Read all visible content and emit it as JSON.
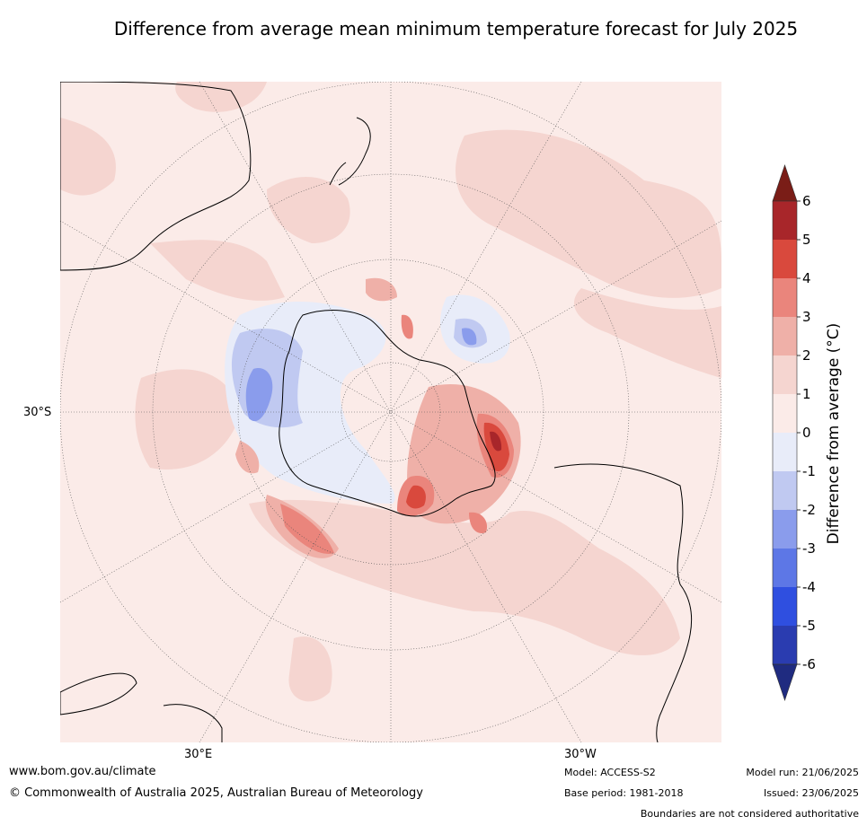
{
  "title": "Difference from average mean minimum temperature forecast for July 2025",
  "map": {
    "projection": "south polar stereographic",
    "graticule_labels": {
      "left": "30°S",
      "bottom_left": "30°E",
      "bottom_right": "30°W"
    },
    "regions": [
      {
        "name": "Antarctica interior",
        "anomaly_class": "0 to -1"
      },
      {
        "name": "East Antarctica coast",
        "anomaly_class": "-1 to -3"
      },
      {
        "name": "Weddell Sea / Antarctic Peninsula",
        "anomaly_class": "+2 to +5"
      },
      {
        "name": "Southern Indian Ocean near 60°S",
        "anomaly_class": "+2 to +4"
      },
      {
        "name": "Pacific sector",
        "anomaly_class": "-1 to -2"
      },
      {
        "name": "Mid-latitude oceans",
        "anomaly_class": "0 to +1"
      }
    ]
  },
  "colorbar": {
    "label": "Difference from average (°C)",
    "ticks": [
      "6",
      "5",
      "4",
      "3",
      "2",
      "1",
      "0",
      "-1",
      "-2",
      "-3",
      "-4",
      "-5",
      "-6"
    ],
    "colors": [
      "#a8262a",
      "#d9493d",
      "#ea857c",
      "#efb0a8",
      "#f5d5d0",
      "#fbebe8",
      "#e8ecf9",
      "#c0c9f1",
      "#8a9cec",
      "#5d77e6",
      "#2f4fe0",
      "#2a3cb0"
    ],
    "over_color": "#7a1d17",
    "under_color": "#1f2b80"
  },
  "footer": {
    "url": "www.bom.gov.au/climate",
    "copyright": "© Commonwealth of Australia 2025, Australian Bureau of Meteorology",
    "model": "Model: ACCESS-S2",
    "base_period": "Base period: 1981-2018",
    "model_run": "Model run: 21/06/2025",
    "issued": "Issued: 23/06/2025",
    "disclaimer": "Boundaries are not considered authoritative"
  }
}
